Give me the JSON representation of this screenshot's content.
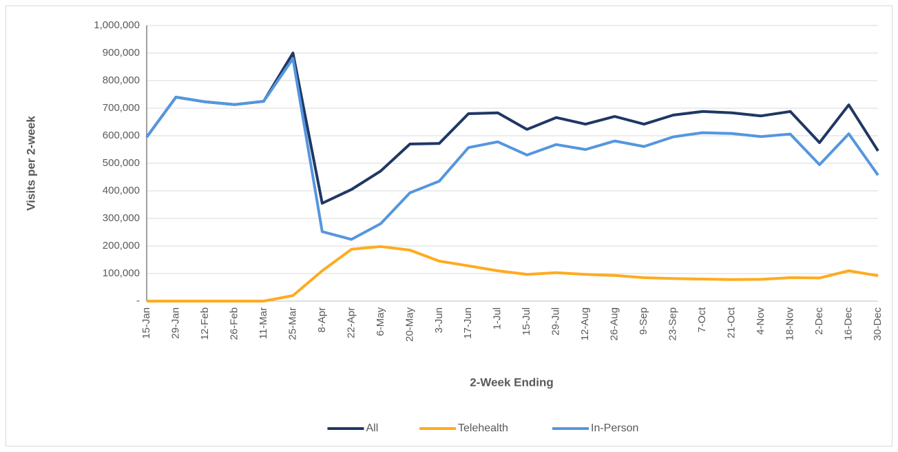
{
  "chart_data": {
    "type": "line",
    "xlabel": "2-Week Ending",
    "ylabel": "Visits per 2-week",
    "categories": [
      "15-Jan",
      "29-Jan",
      "12-Feb",
      "26-Feb",
      "11-Mar",
      "25-Mar",
      "8-Apr",
      "22-Apr",
      "6-May",
      "20-May",
      "3-Jun",
      "17-Jun",
      "1-Jul",
      "15-Jul",
      "29-Jul",
      "12-Aug",
      "26-Aug",
      "9-Sep",
      "23-Sep",
      "7-Oct",
      "21-Oct",
      "4-Nov",
      "18-Nov",
      "2-Dec",
      "16-Dec",
      "30-Dec"
    ],
    "series": [
      {
        "name": "All",
        "color": "#1f3864",
        "values": [
          595000,
          740000,
          723000,
          713000,
          725000,
          900000,
          355000,
          405000,
          472000,
          570000,
          572000,
          680000,
          683000,
          623000,
          666000,
          642000,
          670000,
          642000,
          675000,
          688000,
          683000,
          672000,
          688000,
          575000,
          712000,
          545000
        ]
      },
      {
        "name": "Telehealth",
        "color": "#ffab1f",
        "values": [
          0,
          0,
          0,
          0,
          0,
          20000,
          110000,
          188000,
          198000,
          185000,
          145000,
          128000,
          110000,
          97000,
          103000,
          97000,
          93000,
          85000,
          82000,
          80000,
          78000,
          79000,
          85000,
          84000,
          110000,
          92000
        ]
      },
      {
        "name": "In-Person",
        "color": "#5596de",
        "values": [
          595000,
          740000,
          723000,
          713000,
          725000,
          880000,
          252000,
          224000,
          281000,
          393000,
          435000,
          557000,
          578000,
          530000,
          568000,
          550000,
          581000,
          561000,
          596000,
          611000,
          608000,
          597000,
          606000,
          495000,
          607000,
          457000
        ]
      }
    ],
    "ylim": [
      0,
      1000000
    ],
    "yticks": [
      {
        "value": 0,
        "label": "-"
      },
      {
        "value": 100000,
        "label": "100,000"
      },
      {
        "value": 200000,
        "label": "200,000"
      },
      {
        "value": 300000,
        "label": "300,000"
      },
      {
        "value": 400000,
        "label": "400,000"
      },
      {
        "value": 500000,
        "label": "500,000"
      },
      {
        "value": 600000,
        "label": "600,000"
      },
      {
        "value": 700000,
        "label": "700,000"
      },
      {
        "value": 800000,
        "label": "800,000"
      },
      {
        "value": 900000,
        "label": "900,000"
      },
      {
        "value": 1000000,
        "label": "1,000,000"
      }
    ],
    "grid": true,
    "legend": "bottom"
  }
}
